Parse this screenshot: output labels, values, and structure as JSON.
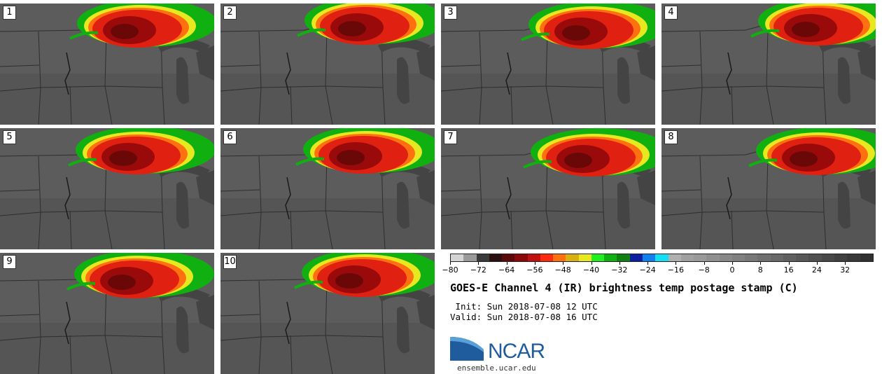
{
  "figure": {
    "title": "GOES-E Channel 4 (IR) brightness temp postage stamp (C)",
    "init": " Init: Sun 2018-07-08 12 UTC",
    "valid": "Valid: Sun 2018-07-08 16 UTC"
  },
  "panels": [
    {
      "label": "1"
    },
    {
      "label": "2"
    },
    {
      "label": "3"
    },
    {
      "label": "4"
    },
    {
      "label": "5"
    },
    {
      "label": "6"
    },
    {
      "label": "7"
    },
    {
      "label": "8"
    },
    {
      "label": "9"
    },
    {
      "label": "10"
    }
  ],
  "colorbar": {
    "colors": [
      "#d4d4d4",
      "#9a9a9a",
      "#3a3a3a",
      "#2a1010",
      "#5a0a0a",
      "#8a0a0a",
      "#c01010",
      "#ff2a10",
      "#ff7010",
      "#d8b010",
      "#e8e820",
      "#20f020",
      "#10b010",
      "#108010",
      "#0a20a0",
      "#1080f0",
      "#10e0f0",
      "#b0b0b0",
      "#a0a0a0",
      "#9a9a9a",
      "#909090",
      "#888888",
      "#808080",
      "#787878",
      "#707070",
      "#686868",
      "#606060",
      "#585858",
      "#505050",
      "#484848",
      "#404040",
      "#383838",
      "#303030"
    ],
    "tick_labels": [
      "−80",
      "−72",
      "−64",
      "−56",
      "−48",
      "−40",
      "−32",
      "−24",
      "−16",
      "−8",
      "0",
      "8",
      "16",
      "24",
      "32"
    ],
    "range": [
      -80,
      40
    ]
  },
  "logo": {
    "name": "NCAR",
    "url": "ensemble.ucar.edu",
    "colors": {
      "blue": "#1f5c9e",
      "light_blue": "#5aa0d8"
    }
  }
}
